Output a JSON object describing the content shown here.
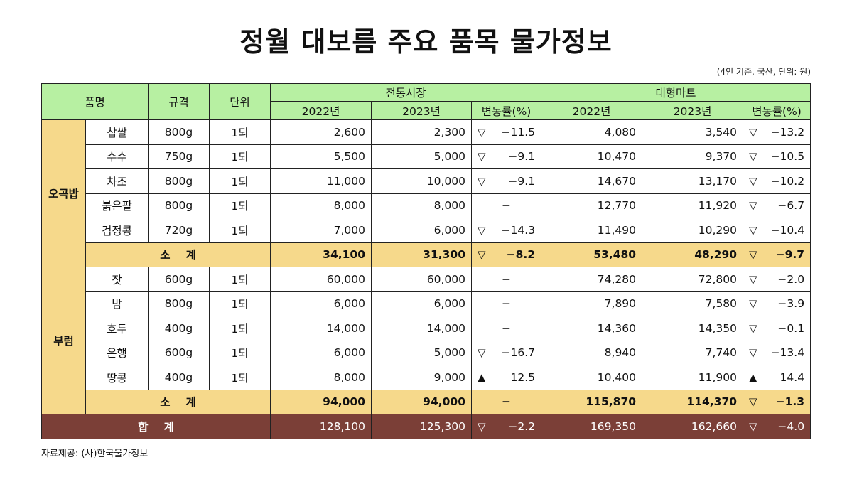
{
  "title": "정월 대보름 주요 품목 물가정보",
  "unit_note": "(4인 기준, 국산, 단위: 원)",
  "colors": {
    "header_bg": "#b7f0a2",
    "category_bg": "#f6d98b",
    "total_bg": "#7b3f37",
    "total_text": "#ffffff"
  },
  "table": {
    "headers": {
      "item_name": "품명",
      "spec": "규격",
      "unit": "단위",
      "market_group": "전통시장",
      "mart_group": "대형마트",
      "year_2022": "2022년",
      "year_2023": "2023년",
      "change_rate": "변동률(%)"
    },
    "groups": [
      {
        "category": "오곡밥",
        "rows": [
          {
            "name": "찹쌀",
            "spec": "800g",
            "unit": "1되",
            "market_2022": "2,600",
            "market_2023": "2,300",
            "market_change_symbol": "▽",
            "market_change": "−11.5",
            "mart_2022": "4,080",
            "mart_2023": "3,540",
            "mart_change_symbol": "▽",
            "mart_change": "−13.2"
          },
          {
            "name": "수수",
            "spec": "750g",
            "unit": "1되",
            "market_2022": "5,500",
            "market_2023": "5,000",
            "market_change_symbol": "▽",
            "market_change": "−9.1",
            "mart_2022": "10,470",
            "mart_2023": "9,370",
            "mart_change_symbol": "▽",
            "mart_change": "−10.5"
          },
          {
            "name": "차조",
            "spec": "800g",
            "unit": "1되",
            "market_2022": "11,000",
            "market_2023": "10,000",
            "market_change_symbol": "▽",
            "market_change": "−9.1",
            "mart_2022": "14,670",
            "mart_2023": "13,170",
            "mart_change_symbol": "▽",
            "mart_change": "−10.2"
          },
          {
            "name": "붉은팥",
            "spec": "800g",
            "unit": "1되",
            "market_2022": "8,000",
            "market_2023": "8,000",
            "market_change_symbol": "",
            "market_change": "−",
            "mart_2022": "12,770",
            "mart_2023": "11,920",
            "mart_change_symbol": "▽",
            "mart_change": "−6.7"
          },
          {
            "name": "검정콩",
            "spec": "720g",
            "unit": "1되",
            "market_2022": "7,000",
            "market_2023": "6,000",
            "market_change_symbol": "▽",
            "market_change": "−14.3",
            "mart_2022": "11,490",
            "mart_2023": "10,290",
            "mart_change_symbol": "▽",
            "mart_change": "−10.4"
          }
        ],
        "subtotal": {
          "label_a": "소",
          "label_b": "계",
          "market_2022": "34,100",
          "market_2023": "31,300",
          "market_change_symbol": "▽",
          "market_change": "−8.2",
          "mart_2022": "53,480",
          "mart_2023": "48,290",
          "mart_change_symbol": "▽",
          "mart_change": "−9.7"
        }
      },
      {
        "category": "부럼",
        "rows": [
          {
            "name": "잣",
            "spec": "600g",
            "unit": "1되",
            "market_2022": "60,000",
            "market_2023": "60,000",
            "market_change_symbol": "",
            "market_change": "−",
            "mart_2022": "74,280",
            "mart_2023": "72,800",
            "mart_change_symbol": "▽",
            "mart_change": "−2.0"
          },
          {
            "name": "밤",
            "spec": "800g",
            "unit": "1되",
            "market_2022": "6,000",
            "market_2023": "6,000",
            "market_change_symbol": "",
            "market_change": "−",
            "mart_2022": "7,890",
            "mart_2023": "7,580",
            "mart_change_symbol": "▽",
            "mart_change": "−3.9"
          },
          {
            "name": "호두",
            "spec": "400g",
            "unit": "1되",
            "market_2022": "14,000",
            "market_2023": "14,000",
            "market_change_symbol": "",
            "market_change": "−",
            "mart_2022": "14,360",
            "mart_2023": "14,350",
            "mart_change_symbol": "▽",
            "mart_change": "−0.1"
          },
          {
            "name": "은행",
            "spec": "600g",
            "unit": "1되",
            "market_2022": "6,000",
            "market_2023": "5,000",
            "market_change_symbol": "▽",
            "market_change": "−16.7",
            "mart_2022": "8,940",
            "mart_2023": "7,740",
            "mart_change_symbol": "▽",
            "mart_change": "−13.4"
          },
          {
            "name": "땅콩",
            "spec": "400g",
            "unit": "1되",
            "market_2022": "8,000",
            "market_2023": "9,000",
            "market_change_symbol": "▲",
            "market_change": "12.5",
            "mart_2022": "10,400",
            "mart_2023": "11,900",
            "mart_change_symbol": "▲",
            "mart_change": "14.4"
          }
        ],
        "subtotal": {
          "label_a": "소",
          "label_b": "계",
          "market_2022": "94,000",
          "market_2023": "94,000",
          "market_change_symbol": "",
          "market_change": "−",
          "mart_2022": "115,870",
          "mart_2023": "114,370",
          "mart_change_symbol": "▽",
          "mart_change": "−1.3"
        }
      }
    ],
    "total": {
      "label_a": "합",
      "label_b": "계",
      "market_2022": "128,100",
      "market_2023": "125,300",
      "market_change_symbol": "▽",
      "market_change": "−2.2",
      "mart_2022": "169,350",
      "mart_2023": "162,660",
      "mart_change_symbol": "▽",
      "mart_change": "−4.0"
    }
  },
  "source": "자료제공: (사)한국물가정보"
}
